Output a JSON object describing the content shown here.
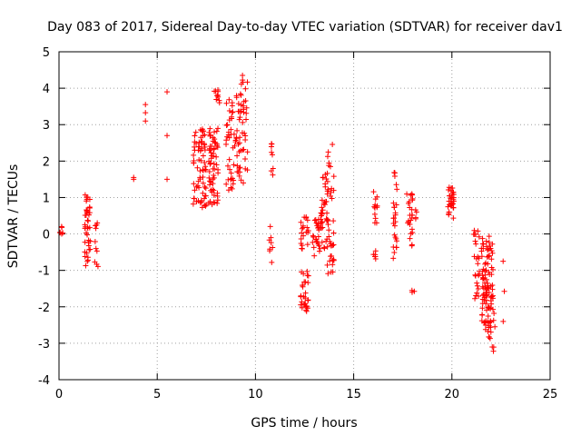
{
  "chart_data": {
    "type": "scatter",
    "title": "Day 083 of 2017, Sidereal Day-to-day VTEC variation (SDTVAR) for receiver dav1",
    "xlabel": "GPS time / hours",
    "ylabel": "SDTVAR / TECUs",
    "xlim": [
      0,
      25
    ],
    "ylim": [
      -4,
      5
    ],
    "x_ticks": [
      0,
      5,
      10,
      15,
      20,
      25
    ],
    "y_ticks": [
      -4,
      -3,
      -2,
      -1,
      0,
      1,
      2,
      3,
      4,
      5
    ],
    "grid": true,
    "marker": "+",
    "color": "#ff0000",
    "clusters": [
      {
        "x": [
          0.0,
          0.2
        ],
        "y": [
          -0.1,
          0.25
        ],
        "n": 6
      },
      {
        "x": [
          1.3,
          1.6
        ],
        "y": [
          -0.9,
          1.1
        ],
        "n": 40
      },
      {
        "x": [
          1.8,
          2.0
        ],
        "y": [
          -1.0,
          0.3
        ],
        "n": 10
      },
      {
        "x": [
          3.8,
          3.8
        ],
        "y": [
          1.5,
          1.55
        ],
        "n": 2
      },
      {
        "x": [
          4.4,
          4.4
        ],
        "y": [
          3.1,
          3.55
        ],
        "n": 3
      },
      {
        "x": [
          5.5,
          5.5
        ],
        "y": [
          1.5,
          3.9
        ],
        "n": 3
      },
      {
        "x": [
          6.8,
          7.5
        ],
        "y": [
          0.7,
          2.9
        ],
        "n": 70
      },
      {
        "x": [
          7.6,
          8.1
        ],
        "y": [
          0.8,
          3.0
        ],
        "n": 60
      },
      {
        "x": [
          7.9,
          8.2
        ],
        "y": [
          3.6,
          4.0
        ],
        "n": 10
      },
      {
        "x": [
          8.5,
          9.0
        ],
        "y": [
          1.2,
          3.7
        ],
        "n": 40
      },
      {
        "x": [
          9.0,
          9.6
        ],
        "y": [
          1.4,
          4.4
        ],
        "n": 55
      },
      {
        "x": [
          10.7,
          10.9
        ],
        "y": [
          -0.8,
          0.3
        ],
        "n": 8
      },
      {
        "x": [
          10.8,
          10.9
        ],
        "y": [
          1.6,
          2.5
        ],
        "n": 8
      },
      {
        "x": [
          12.3,
          12.7
        ],
        "y": [
          -2.2,
          -1.0
        ],
        "n": 30
      },
      {
        "x": [
          12.3,
          12.7
        ],
        "y": [
          -0.5,
          0.5
        ],
        "n": 20
      },
      {
        "x": [
          12.9,
          13.3
        ],
        "y": [
          -0.6,
          0.4
        ],
        "n": 25
      },
      {
        "x": [
          13.3,
          13.7
        ],
        "y": [
          -0.5,
          1.7
        ],
        "n": 35
      },
      {
        "x": [
          13.6,
          14.0
        ],
        "y": [
          -1.1,
          2.5
        ],
        "n": 40
      },
      {
        "x": [
          16.0,
          16.2
        ],
        "y": [
          -0.7,
          -0.4
        ],
        "n": 6
      },
      {
        "x": [
          16.0,
          16.2
        ],
        "y": [
          0.3,
          1.2
        ],
        "n": 12
      },
      {
        "x": [
          17.0,
          17.2
        ],
        "y": [
          -0.8,
          1.85
        ],
        "n": 25
      },
      {
        "x": [
          17.7,
          18.0
        ],
        "y": [
          -0.4,
          1.15
        ],
        "n": 25
      },
      {
        "x": [
          17.9,
          18.1
        ],
        "y": [
          -1.6,
          -1.55
        ],
        "n": 3
      },
      {
        "x": [
          18.1,
          18.2
        ],
        "y": [
          0.4,
          0.7
        ],
        "n": 4
      },
      {
        "x": [
          19.8,
          20.1
        ],
        "y": [
          0.4,
          1.3
        ],
        "n": 30
      },
      {
        "x": [
          21.1,
          21.4
        ],
        "y": [
          -1.9,
          0.1
        ],
        "n": 25
      },
      {
        "x": [
          21.5,
          22.1
        ],
        "y": [
          -2.7,
          0.0
        ],
        "n": 90
      },
      {
        "x": [
          21.8,
          22.2
        ],
        "y": [
          -3.4,
          -1.7
        ],
        "n": 20
      },
      {
        "x": [
          22.6,
          22.7
        ],
        "y": [
          -2.4,
          -0.75
        ],
        "n": 3
      }
    ]
  }
}
